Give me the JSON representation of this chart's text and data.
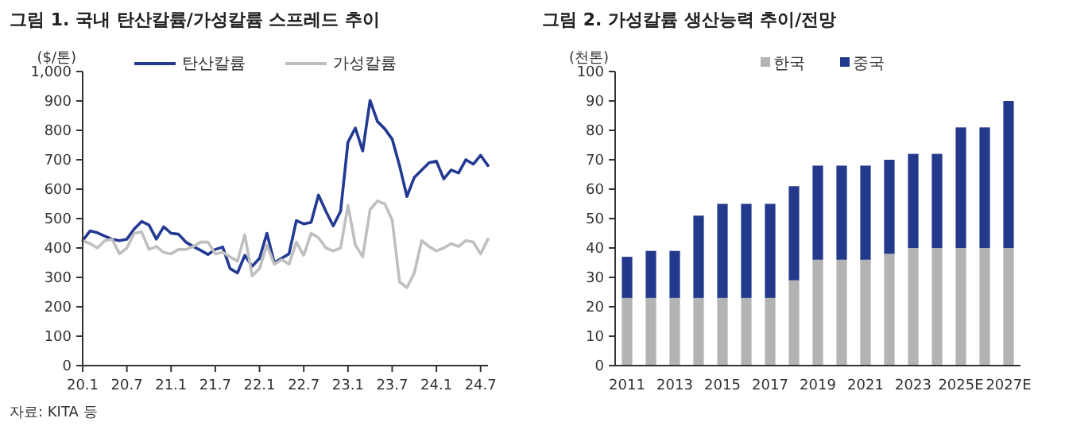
{
  "chart_data": [
    {
      "type": "line",
      "title": "그림 1. 국내 탄산칼륨/가성칼륨 스프레드 추이",
      "ylabel": "($/톤)",
      "legend": "top",
      "grid": false,
      "annotations": [
        "자료: KITA 등"
      ],
      "x": [
        "2020-01",
        "2020-02",
        "2020-03",
        "2020-04",
        "2020-05",
        "2020-06",
        "2020-07",
        "2020-08",
        "2020-09",
        "2020-10",
        "2020-11",
        "2020-12",
        "2021-01",
        "2021-02",
        "2021-03",
        "2021-04",
        "2021-05",
        "2021-06",
        "2021-07",
        "2021-08",
        "2021-09",
        "2021-10",
        "2021-11",
        "2021-12",
        "2022-01",
        "2022-02",
        "2022-03",
        "2022-04",
        "2022-05",
        "2022-06",
        "2022-07",
        "2022-08",
        "2022-09",
        "2022-10",
        "2022-11",
        "2022-12",
        "2023-01",
        "2023-02",
        "2023-03",
        "2023-04",
        "2023-05",
        "2023-06",
        "2023-07",
        "2023-08",
        "2023-09",
        "2023-10",
        "2023-11",
        "2023-12",
        "2024-01",
        "2024-02",
        "2024-03",
        "2024-04",
        "2024-05",
        "2024-06",
        "2024-07",
        "2024-08"
      ],
      "xlim": [
        "2020-01",
        "2024-08"
      ],
      "xticks": [
        {
          "value": "2020-01",
          "label": "20.1"
        },
        {
          "value": "2020-07",
          "label": "20.7"
        },
        {
          "value": "2021-01",
          "label": "21.1"
        },
        {
          "value": "2021-07",
          "label": "21.7"
        },
        {
          "value": "2022-01",
          "label": "22.1"
        },
        {
          "value": "2022-07",
          "label": "22.7"
        },
        {
          "value": "2023-01",
          "label": "23.1"
        },
        {
          "value": "2023-07",
          "label": "23.7"
        },
        {
          "value": "2024-01",
          "label": "24.1"
        },
        {
          "value": "2024-07",
          "label": "24.7"
        }
      ],
      "ylim": [
        0,
        1000
      ],
      "yticks": [
        0,
        100,
        200,
        300,
        400,
        500,
        600,
        700,
        800,
        900,
        {
          "value": 1000,
          "label": "1,000"
        }
      ],
      "series": [
        {
          "name": "탄산칼륨",
          "color": "#233a93",
          "values": [
            425,
            458,
            452,
            440,
            430,
            425,
            430,
            465,
            490,
            478,
            430,
            472,
            450,
            447,
            420,
            405,
            392,
            378,
            395,
            403,
            330,
            315,
            375,
            338,
            365,
            450,
            350,
            365,
            380,
            493,
            482,
            487,
            580,
            525,
            475,
            525,
            760,
            808,
            730,
            902,
            830,
            805,
            770,
            680,
            575,
            640,
            665,
            690,
            695,
            635,
            665,
            655,
            700,
            685,
            715,
            680
          ]
        },
        {
          "name": "가성칼륨",
          "color": "#bfbfbf",
          "values": [
            425,
            415,
            400,
            425,
            430,
            380,
            400,
            450,
            455,
            395,
            405,
            385,
            380,
            395,
            395,
            405,
            420,
            420,
            380,
            385,
            370,
            355,
            445,
            305,
            330,
            410,
            345,
            360,
            345,
            420,
            375,
            450,
            435,
            400,
            390,
            400,
            545,
            410,
            370,
            530,
            560,
            550,
            495,
            285,
            265,
            315,
            425,
            405,
            390,
            400,
            415,
            405,
            425,
            420,
            380,
            430
          ]
        }
      ]
    },
    {
      "type": "bar",
      "stacked": true,
      "title": "그림 2. 가성칼륨 생산능력 추이/전망",
      "ylabel": "(천톤)",
      "legend": "top",
      "grid": false,
      "categories": [
        "2011",
        null,
        "2013",
        null,
        "2015",
        null,
        "2017",
        null,
        "2019",
        null,
        "2021",
        null,
        "2023",
        null,
        "2025E",
        null,
        "2027E"
      ],
      "ylim": [
        0,
        100
      ],
      "yticks": [
        0,
        10,
        20,
        30,
        40,
        50,
        60,
        70,
        80,
        90,
        100
      ],
      "series": [
        {
          "name": "한국",
          "color": "#b3b3b3",
          "values": [
            23,
            23,
            23,
            23,
            23,
            23,
            23,
            29,
            36,
            36,
            36,
            38,
            40,
            40,
            40,
            40,
            40
          ]
        },
        {
          "name": "중국",
          "color": "#233a8c",
          "values": [
            14,
            16,
            16,
            28,
            32,
            32,
            32,
            32,
            32,
            32,
            32,
            32,
            32,
            32,
            41,
            41,
            50
          ]
        }
      ]
    }
  ]
}
